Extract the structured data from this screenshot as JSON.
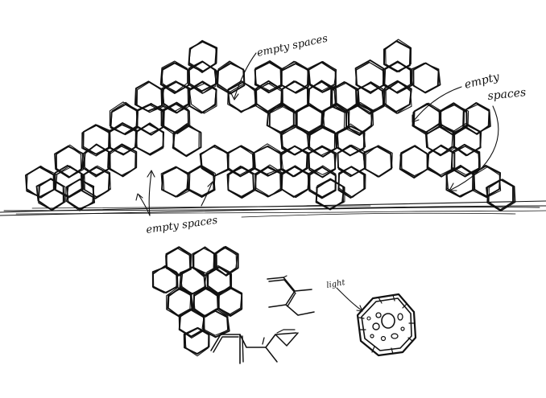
{
  "annotations": {
    "top_empty_spaces": "empty spaces",
    "right_empty_spaces_line1": "empty",
    "right_empty_spaces_line2": "spaces",
    "bottom_empty_spaces": "empty spaces",
    "light_label": "light"
  },
  "colors": {
    "ink": "#111111",
    "paper": "#ffffff"
  }
}
